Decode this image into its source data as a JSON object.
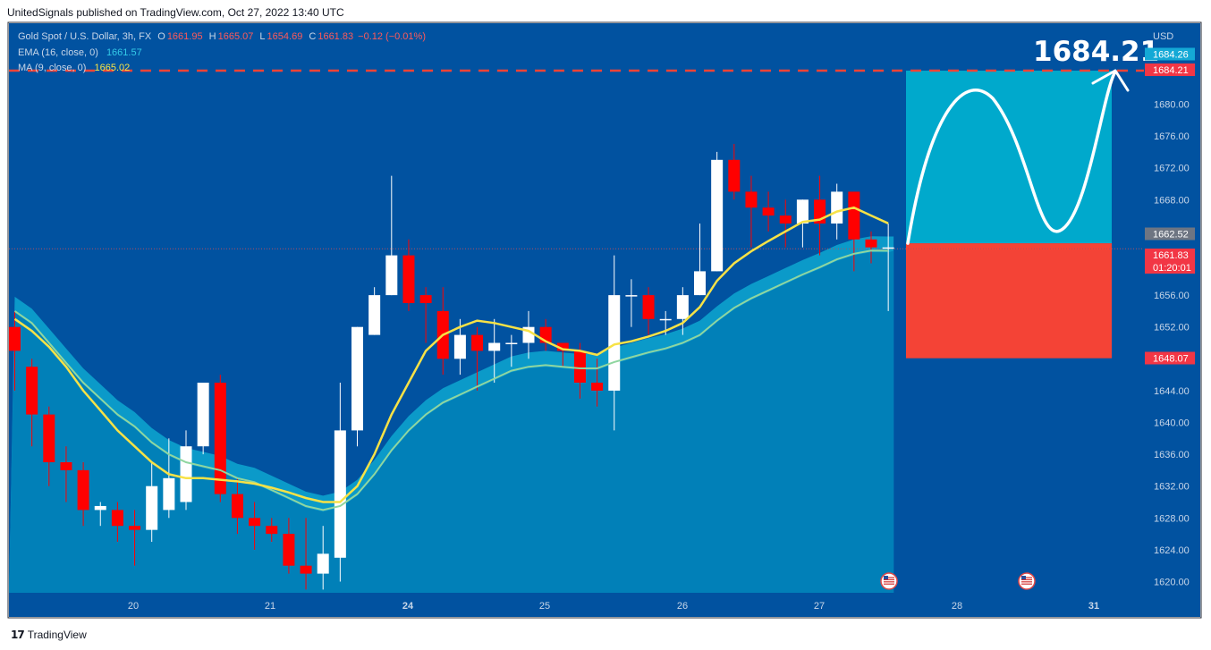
{
  "header": {
    "published_by": "UnitedSignals published on TradingView.com, Oct 27, 2022 13:40 UTC"
  },
  "legend": {
    "symbol": "Gold Spot / U.S. Dollar, 3h, FX",
    "o_label": "O",
    "o_value": "1661.95",
    "h_label": "H",
    "h_value": "1665.07",
    "l_label": "L",
    "l_value": "1654.69",
    "c_label": "C",
    "c_value": "1661.83",
    "change": "−0.12 (−0.01%)",
    "ema_label": "EMA (16, close, 0)",
    "ema_value": "1661.57",
    "ma_label": "MA (9, close, 0)",
    "ma_value": "1665.02"
  },
  "target": {
    "label": "1684.21"
  },
  "footer": {
    "logo": "𝟭𝟳",
    "brand": "TradingView"
  },
  "colors": {
    "background": "#0152a0",
    "area": "#0180b8",
    "area_band": "#0b9ac9",
    "up": "#ffffff",
    "down": "#ff0000",
    "ema": "#8fd6a0",
    "ma": "#f7e246",
    "target_zone": "#00a9cc",
    "stop_zone": "#f44336",
    "target_line": "#f44336"
  },
  "chart_data": {
    "type": "candlestick",
    "currency": "USD",
    "ylim": [
      1618,
      1686
    ],
    "y_ticks": [
      "1620.00",
      "1624.00",
      "1628.00",
      "1632.00",
      "1636.00",
      "1640.00",
      "1644.00",
      "1648.00",
      "1652.00",
      "1656.00",
      "1660.00",
      "1664.00",
      "1668.00",
      "1672.00",
      "1676.00",
      "1680.00"
    ],
    "x_ticks": [
      "20",
      "21",
      "24",
      "25",
      "26",
      "27",
      "28",
      "31"
    ],
    "price_labels": [
      {
        "value": "1684.26",
        "kind": "box-light"
      },
      {
        "value": "1684.21",
        "kind": "box-red"
      },
      {
        "value": "1662.52",
        "kind": "box-gray"
      },
      {
        "value": "1661.83",
        "kind": "box-red",
        "sub": "01:20:01"
      },
      {
        "value": "1648.07",
        "kind": "box-red"
      }
    ],
    "current_price": 1661.83,
    "target_price": 1684.21,
    "entry_price": 1662.52,
    "stop_price": 1648.07,
    "candles": [
      {
        "o": 1652,
        "h": 1654,
        "l": 1644,
        "c": 1649
      },
      {
        "o": 1647,
        "h": 1648,
        "l": 1637,
        "c": 1641
      },
      {
        "o": 1641,
        "h": 1642,
        "l": 1632,
        "c": 1635
      },
      {
        "o": 1635,
        "h": 1637,
        "l": 1630,
        "c": 1634
      },
      {
        "o": 1634,
        "h": 1635,
        "l": 1627,
        "c": 1629
      },
      {
        "o": 1629,
        "h": 1630,
        "l": 1627,
        "c": 1629.5
      },
      {
        "o": 1629,
        "h": 1630,
        "l": 1625,
        "c": 1627
      },
      {
        "o": 1627,
        "h": 1629,
        "l": 1622,
        "c": 1626.5
      },
      {
        "o": 1626.5,
        "h": 1635,
        "l": 1625,
        "c": 1632
      },
      {
        "o": 1629,
        "h": 1638,
        "l": 1628,
        "c": 1633
      },
      {
        "o": 1630,
        "h": 1639,
        "l": 1629,
        "c": 1637
      },
      {
        "o": 1637,
        "h": 1645,
        "l": 1636,
        "c": 1645
      },
      {
        "o": 1645,
        "h": 1646,
        "l": 1630,
        "c": 1631
      },
      {
        "o": 1631,
        "h": 1633,
        "l": 1626,
        "c": 1628
      },
      {
        "o": 1628,
        "h": 1630,
        "l": 1624,
        "c": 1627
      },
      {
        "o": 1627,
        "h": 1628,
        "l": 1625,
        "c": 1626
      },
      {
        "o": 1626,
        "h": 1628,
        "l": 1621,
        "c": 1622
      },
      {
        "o": 1622,
        "h": 1628,
        "l": 1619,
        "c": 1621
      },
      {
        "o": 1621,
        "h": 1627,
        "l": 1619,
        "c": 1623.5
      },
      {
        "o": 1623,
        "h": 1645,
        "l": 1620,
        "c": 1639
      },
      {
        "o": 1639,
        "h": 1652,
        "l": 1637,
        "c": 1652
      },
      {
        "o": 1651,
        "h": 1657,
        "l": 1651,
        "c": 1656
      },
      {
        "o": 1656,
        "h": 1671,
        "l": 1656,
        "c": 1661
      },
      {
        "o": 1661,
        "h": 1663,
        "l": 1654,
        "c": 1655
      },
      {
        "o": 1656,
        "h": 1657,
        "l": 1650,
        "c": 1655
      },
      {
        "o": 1654,
        "h": 1657,
        "l": 1646,
        "c": 1648
      },
      {
        "o": 1648,
        "h": 1653,
        "l": 1646,
        "c": 1651
      },
      {
        "o": 1651,
        "h": 1652,
        "l": 1644,
        "c": 1649
      },
      {
        "o": 1649,
        "h": 1653,
        "l": 1645,
        "c": 1650
      },
      {
        "o": 1650,
        "h": 1651,
        "l": 1647,
        "c": 1650
      },
      {
        "o": 1650,
        "h": 1654,
        "l": 1648,
        "c": 1652
      },
      {
        "o": 1652,
        "h": 1653,
        "l": 1649,
        "c": 1650
      },
      {
        "o": 1650,
        "h": 1650,
        "l": 1647,
        "c": 1649
      },
      {
        "o": 1649,
        "h": 1650,
        "l": 1643,
        "c": 1645
      },
      {
        "o": 1645,
        "h": 1648,
        "l": 1642,
        "c": 1644
      },
      {
        "o": 1644,
        "h": 1661,
        "l": 1639,
        "c": 1656
      },
      {
        "o": 1656,
        "h": 1658,
        "l": 1652,
        "c": 1656
      },
      {
        "o": 1656,
        "h": 1657,
        "l": 1651,
        "c": 1653
      },
      {
        "o": 1653,
        "h": 1654,
        "l": 1651,
        "c": 1653
      },
      {
        "o": 1653,
        "h": 1657,
        "l": 1651,
        "c": 1656
      },
      {
        "o": 1656,
        "h": 1665,
        "l": 1656,
        "c": 1659
      },
      {
        "o": 1659,
        "h": 1674,
        "l": 1659,
        "c": 1673
      },
      {
        "o": 1673,
        "h": 1675,
        "l": 1668,
        "c": 1669
      },
      {
        "o": 1669,
        "h": 1671,
        "l": 1662,
        "c": 1667
      },
      {
        "o": 1667,
        "h": 1669,
        "l": 1664,
        "c": 1666
      },
      {
        "o": 1666,
        "h": 1668,
        "l": 1662,
        "c": 1665
      },
      {
        "o": 1665,
        "h": 1668,
        "l": 1662,
        "c": 1668
      },
      {
        "o": 1668,
        "h": 1671,
        "l": 1661,
        "c": 1665
      },
      {
        "o": 1665,
        "h": 1670,
        "l": 1663,
        "c": 1669
      },
      {
        "o": 1669,
        "h": 1669,
        "l": 1659,
        "c": 1663
      },
      {
        "o": 1663,
        "h": 1664,
        "l": 1660,
        "c": 1662
      },
      {
        "o": 1662,
        "h": 1665,
        "l": 1654,
        "c": 1662
      }
    ],
    "ema": [
      1654,
      1652.5,
      1650,
      1647.5,
      1645,
      1643,
      1641,
      1639.5,
      1637.5,
      1636,
      1635,
      1634.5,
      1634,
      1633,
      1632.5,
      1631.5,
      1630.5,
      1629.5,
      1629,
      1629.5,
      1631,
      1633.5,
      1636.5,
      1639,
      1641,
      1642.5,
      1643.5,
      1644.5,
      1645.5,
      1646.5,
      1647,
      1647.2,
      1647,
      1646.8,
      1646.8,
      1647.6,
      1648.2,
      1648.8,
      1649.3,
      1650,
      1651,
      1652.8,
      1654.4,
      1655.6,
      1656.6,
      1657.6,
      1658.6,
      1659.5,
      1660.5,
      1661.2,
      1661.6,
      1661.57
    ],
    "ma": [
      1653,
      1651.5,
      1649.5,
      1647,
      1644,
      1641.5,
      1639,
      1637,
      1635,
      1633.5,
      1633,
      1633,
      1632.8,
      1632.6,
      1632.3,
      1631.8,
      1631.2,
      1630.5,
      1630,
      1630,
      1632,
      1636,
      1641,
      1645,
      1649,
      1651,
      1652,
      1652.8,
      1652.5,
      1652,
      1651.5,
      1650.2,
      1649.2,
      1649,
      1648.5,
      1649.8,
      1650.2,
      1650.8,
      1651.5,
      1652.5,
      1654.5,
      1657.8,
      1660,
      1661.5,
      1662.8,
      1664,
      1665.2,
      1665.5,
      1666.5,
      1667,
      1666,
      1665.02
    ]
  }
}
